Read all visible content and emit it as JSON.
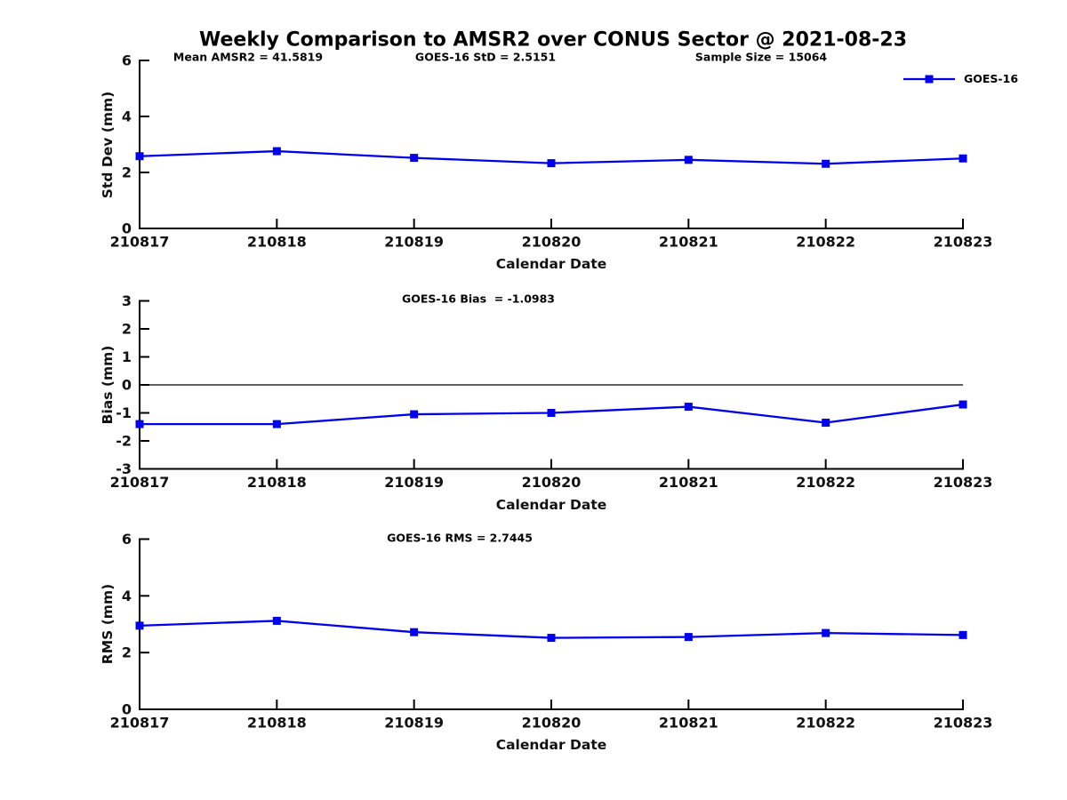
{
  "title": "Weekly Comparison to AMSR2 over CONUS Sector @ 2021-08-23",
  "xlabel": "Calendar Date",
  "legend": {
    "label": "GOES-16"
  },
  "colors": {
    "line": "#0000ee",
    "axis": "#000000",
    "text": "#111111"
  },
  "chart_data": [
    {
      "type": "line",
      "name": "std-dev",
      "ylabel": "Std Dev (mm)",
      "xlabel": "Calendar Date",
      "categories": [
        "210817",
        "210818",
        "210819",
        "210820",
        "210821",
        "210822",
        "210823"
      ],
      "series": [
        {
          "name": "GOES-16",
          "values": [
            2.58,
            2.76,
            2.52,
            2.33,
            2.45,
            2.31,
            2.5
          ]
        }
      ],
      "ylim": [
        0,
        6
      ],
      "yticks": [
        0,
        2,
        4,
        6
      ],
      "zero_line": false,
      "grid": false,
      "legend_position": "top-right-outside",
      "annotations": [
        "Mean AMSR2 = 41.5819",
        "GOES-16 StD = 2.5151",
        "Sample Size = 15064"
      ]
    },
    {
      "type": "line",
      "name": "bias",
      "ylabel": "Bias (mm)",
      "xlabel": "Calendar Date",
      "categories": [
        "210817",
        "210818",
        "210819",
        "210820",
        "210821",
        "210822",
        "210823"
      ],
      "series": [
        {
          "name": "GOES-16",
          "values": [
            -1.4,
            -1.4,
            -1.05,
            -1.0,
            -0.78,
            -1.35,
            -0.7
          ]
        }
      ],
      "ylim": [
        -3,
        3
      ],
      "yticks": [
        -3,
        -2,
        -1,
        0,
        1,
        2,
        3
      ],
      "zero_line": true,
      "grid": false,
      "annotations": [
        "GOES-16 Bias  = -1.0983"
      ]
    },
    {
      "type": "line",
      "name": "rms",
      "ylabel": "RMS (mm)",
      "xlabel": "Calendar Date",
      "categories": [
        "210817",
        "210818",
        "210819",
        "210820",
        "210821",
        "210822",
        "210823"
      ],
      "series": [
        {
          "name": "GOES-16",
          "values": [
            2.95,
            3.12,
            2.72,
            2.52,
            2.55,
            2.69,
            2.62
          ]
        }
      ],
      "ylim": [
        0,
        6
      ],
      "yticks": [
        0,
        2,
        4,
        6
      ],
      "zero_line": false,
      "grid": false,
      "annotations": [
        "GOES-16 RMS = 2.7445"
      ]
    }
  ]
}
